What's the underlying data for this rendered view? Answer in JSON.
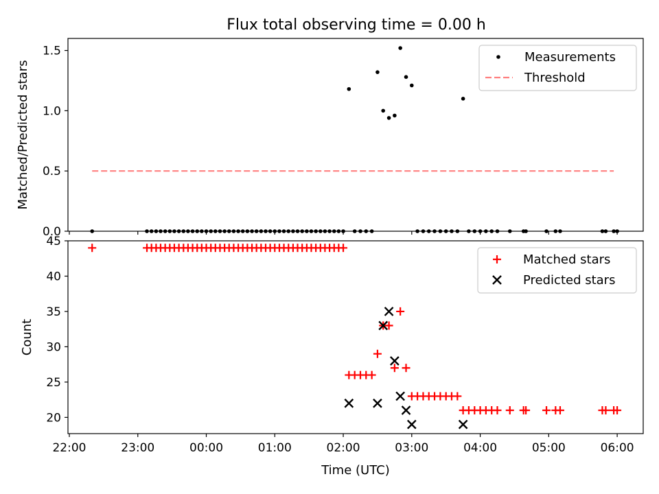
{
  "figure": {
    "title": "Flux total observing time = 0.00 h"
  },
  "chart_data": [
    {
      "type": "scatter",
      "title": "Flux total observing time = 0.00 h",
      "xlabel": "",
      "ylabel": "Matched/Predicted stars",
      "xlim": [
        -2.02,
        6.38
      ],
      "ylim": [
        0.0,
        1.6
      ],
      "xticks": [
        -2,
        -1,
        0,
        1,
        2,
        3,
        4,
        5,
        6
      ],
      "yticks": [
        0.0,
        0.5,
        1.0,
        1.5
      ],
      "ytick_labels": [
        "0.0",
        "0.5",
        "1.0",
        "1.5"
      ],
      "legend_position": "top-right",
      "series": [
        {
          "name": "Measurements",
          "kind": "scatter",
          "marker": "dot",
          "color": "#000000",
          "x": [
            -1.667,
            -0.867,
            -0.8,
            -0.733,
            -0.667,
            -0.6,
            -0.533,
            -0.467,
            -0.4,
            -0.333,
            -0.267,
            -0.2,
            -0.133,
            -0.067,
            0.0,
            0.067,
            0.133,
            0.2,
            0.267,
            0.333,
            0.4,
            0.467,
            0.533,
            0.6,
            0.667,
            0.733,
            0.8,
            0.867,
            0.933,
            1.0,
            1.067,
            1.133,
            1.2,
            1.267,
            1.333,
            1.4,
            1.467,
            1.533,
            1.6,
            1.667,
            1.733,
            1.8,
            1.867,
            1.933,
            2.0,
            2.083,
            2.167,
            2.25,
            2.333,
            2.417,
            2.5,
            2.583,
            2.667,
            2.75,
            2.833,
            2.917,
            3.0,
            3.083,
            3.167,
            3.25,
            3.333,
            3.417,
            3.5,
            3.583,
            3.667,
            3.75,
            3.833,
            3.917,
            4.0,
            4.083,
            4.167,
            4.25,
            4.433,
            4.633,
            4.667,
            4.967,
            5.1,
            5.167,
            5.783,
            5.833,
            5.95,
            6.0
          ],
          "y": [
            0,
            0,
            0,
            0,
            0,
            0,
            0,
            0,
            0,
            0,
            0,
            0,
            0,
            0,
            0,
            0,
            0,
            0,
            0,
            0,
            0,
            0,
            0,
            0,
            0,
            0,
            0,
            0,
            0,
            0,
            0,
            0,
            0,
            0,
            0,
            0,
            0,
            0,
            0,
            0,
            0,
            0,
            0,
            0,
            0,
            1.18,
            0,
            0,
            0,
            0,
            1.32,
            1.0,
            0.94,
            0.96,
            1.52,
            1.28,
            1.21,
            0,
            0,
            0,
            0,
            0,
            0,
            0,
            0,
            1.1,
            0,
            0,
            0,
            0,
            0,
            0,
            0,
            0,
            0,
            0,
            0,
            0,
            0,
            0,
            0,
            0
          ]
        },
        {
          "name": "Threshold",
          "kind": "line",
          "style": "dashed",
          "color": "#ff8080",
          "x": [
            -1.667,
            5.95
          ],
          "y": [
            0.5,
            0.5
          ]
        }
      ]
    },
    {
      "type": "scatter",
      "title": "",
      "xlabel": "Time (UTC)",
      "ylabel": "Count",
      "xlim": [
        -2.02,
        6.38
      ],
      "ylim": [
        17.7,
        45.0
      ],
      "xticks": [
        -2,
        -1,
        0,
        1,
        2,
        3,
        4,
        5,
        6
      ],
      "xtick_labels": [
        "22:00",
        "23:00",
        "00:00",
        "01:00",
        "02:00",
        "03:00",
        "04:00",
        "05:00",
        "06:00"
      ],
      "yticks": [
        20,
        25,
        30,
        35,
        40,
        45
      ],
      "ytick_labels": [
        "20",
        "25",
        "30",
        "35",
        "40",
        "45"
      ],
      "legend_position": "top-right",
      "series": [
        {
          "name": "Matched stars",
          "kind": "scatter",
          "marker": "plus",
          "color": "#ff0000",
          "x": [
            -1.667,
            -0.867,
            -0.8,
            -0.733,
            -0.667,
            -0.6,
            -0.533,
            -0.467,
            -0.4,
            -0.333,
            -0.267,
            -0.2,
            -0.133,
            -0.067,
            0.0,
            0.067,
            0.133,
            0.2,
            0.267,
            0.333,
            0.4,
            0.467,
            0.533,
            0.6,
            0.667,
            0.733,
            0.8,
            0.867,
            0.933,
            1.0,
            1.067,
            1.133,
            1.2,
            1.267,
            1.333,
            1.4,
            1.467,
            1.533,
            1.6,
            1.667,
            1.733,
            1.8,
            1.867,
            1.933,
            2.0,
            2.083,
            2.167,
            2.25,
            2.333,
            2.417,
            2.5,
            2.583,
            2.667,
            2.75,
            2.833,
            2.917,
            3.0,
            3.083,
            3.167,
            3.25,
            3.333,
            3.417,
            3.5,
            3.583,
            3.667,
            3.75,
            3.833,
            3.917,
            4.0,
            4.083,
            4.167,
            4.25,
            4.433,
            4.633,
            4.667,
            4.967,
            5.1,
            5.167,
            5.783,
            5.833,
            5.95,
            6.0
          ],
          "y": [
            44,
            44,
            44,
            44,
            44,
            44,
            44,
            44,
            44,
            44,
            44,
            44,
            44,
            44,
            44,
            44,
            44,
            44,
            44,
            44,
            44,
            44,
            44,
            44,
            44,
            44,
            44,
            44,
            44,
            44,
            44,
            44,
            44,
            44,
            44,
            44,
            44,
            44,
            44,
            44,
            44,
            44,
            44,
            44,
            44,
            26,
            26,
            26,
            26,
            26,
            29,
            33,
            33,
            27,
            35,
            27,
            23,
            23,
            23,
            23,
            23,
            23,
            23,
            23,
            23,
            21,
            21,
            21,
            21,
            21,
            21,
            21,
            21,
            21,
            21,
            21,
            21,
            21,
            21,
            21,
            21,
            21
          ]
        },
        {
          "name": "Predicted stars",
          "kind": "scatter",
          "marker": "x",
          "color": "#000000",
          "x": [
            2.083,
            2.5,
            2.583,
            2.667,
            2.75,
            2.833,
            2.917,
            3.0,
            3.75
          ],
          "y": [
            22,
            22,
            33,
            35,
            28,
            23,
            21,
            19,
            19
          ]
        }
      ]
    }
  ]
}
